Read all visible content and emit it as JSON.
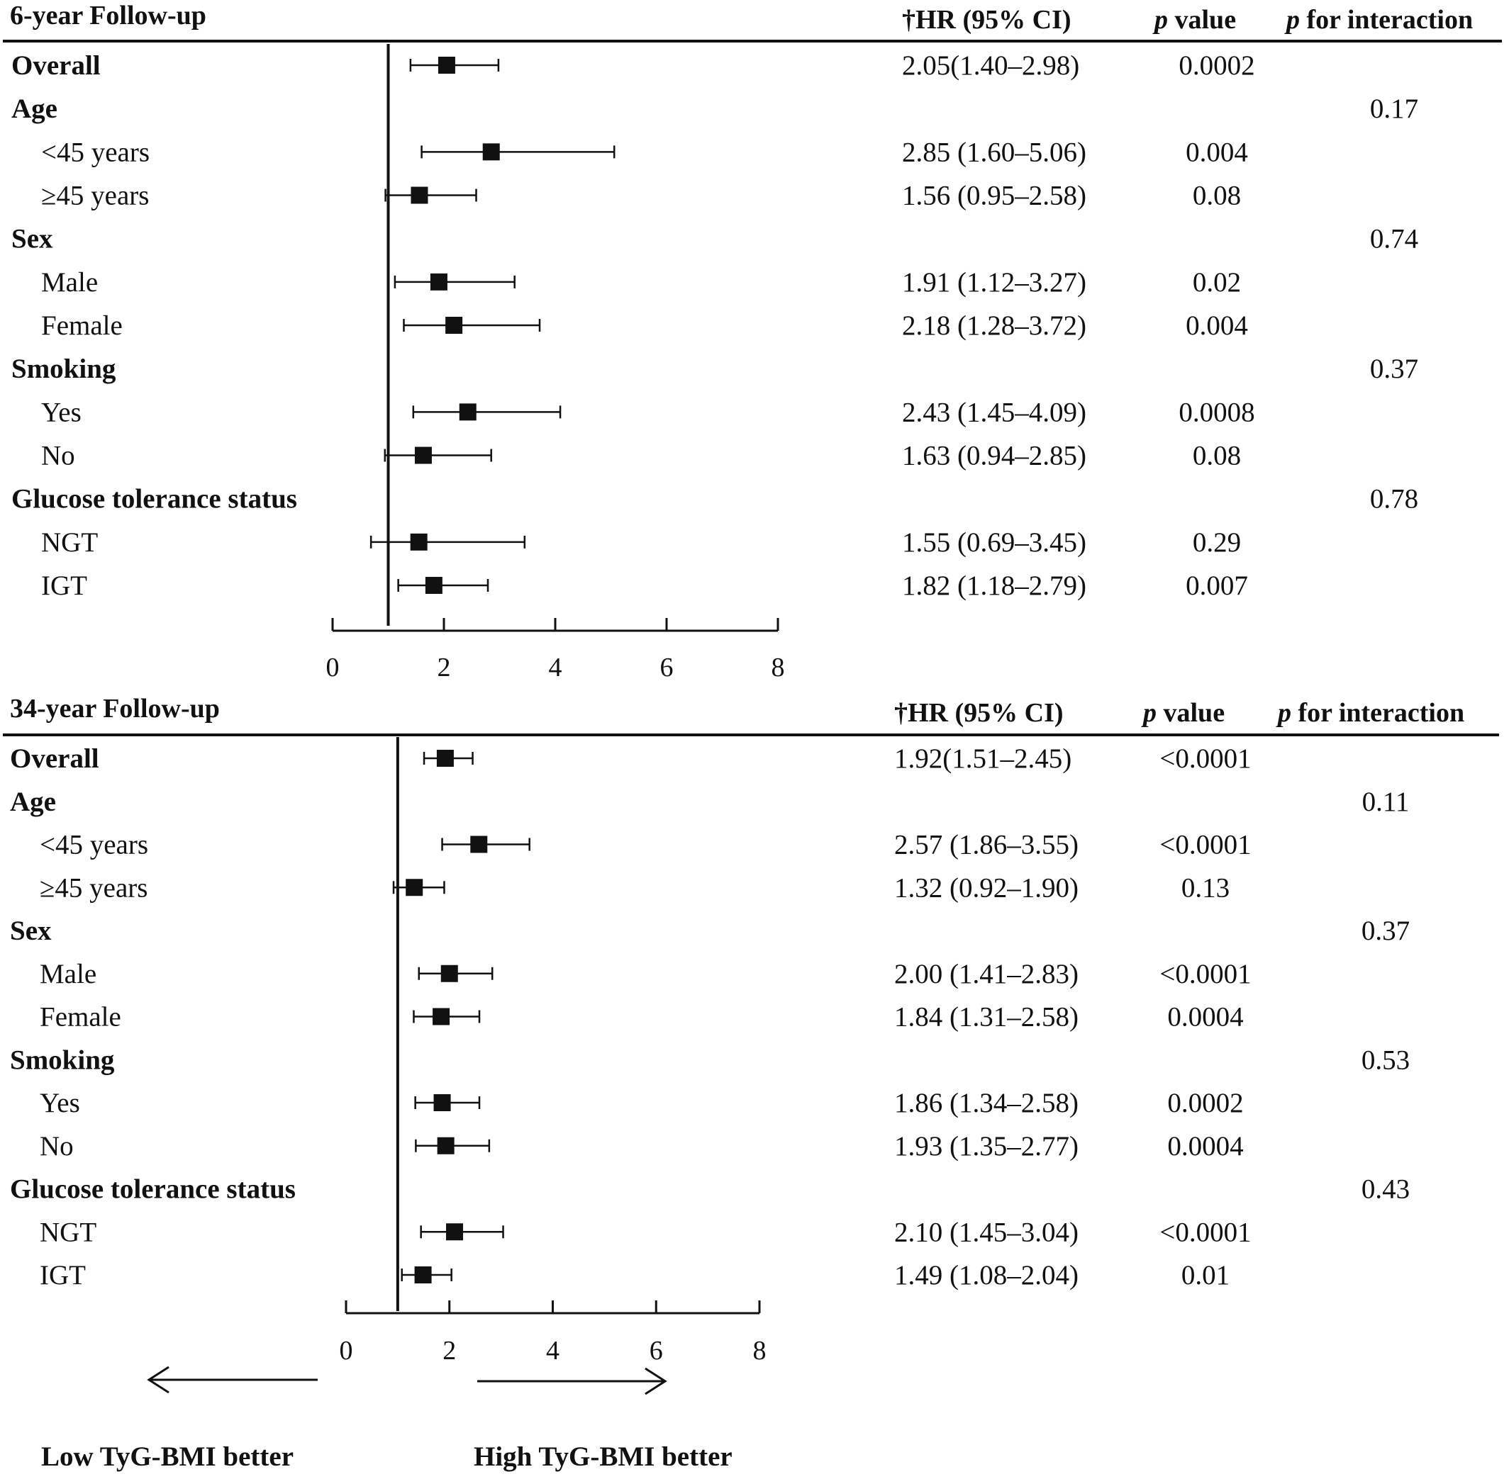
{
  "chart_data": [
    {
      "type": "forest",
      "title": "6-year Follow-up",
      "headers": {
        "hr": "†HR (95% CI)",
        "p_prefix": "p",
        "p_suffix": " value",
        "pint_prefix": "p",
        "pint_suffix": " for interaction"
      },
      "reference_value": 1,
      "xlim": [
        0,
        8
      ],
      "xticks": [
        "0",
        "2",
        "4",
        "6",
        "8"
      ],
      "rows": [
        {
          "label": "Overall",
          "heading": true,
          "hr": 2.05,
          "lo": 1.4,
          "hi": 2.98,
          "hr_text": "2.05(1.40–2.98)",
          "p": "0.0002",
          "p_int": ""
        },
        {
          "label": "Age",
          "heading": true,
          "p_int": "0.17"
        },
        {
          "label": "<45 years",
          "hr": 2.85,
          "lo": 1.6,
          "hi": 5.06,
          "hr_text": "2.85 (1.60–5.06)",
          "p": "0.004"
        },
        {
          "label": "≥45 years",
          "hr": 1.56,
          "lo": 0.95,
          "hi": 2.58,
          "hr_text": "1.56 (0.95–2.58)",
          "p": "0.08"
        },
        {
          "label": "Sex",
          "heading": true,
          "p_int": "0.74"
        },
        {
          "label": "Male",
          "hr": 1.91,
          "lo": 1.12,
          "hi": 3.27,
          "hr_text": "1.91 (1.12–3.27)",
          "p": "0.02"
        },
        {
          "label": "Female",
          "hr": 2.18,
          "lo": 1.28,
          "hi": 3.72,
          "hr_text": "2.18 (1.28–3.72)",
          "p": "0.004"
        },
        {
          "label": "Smoking",
          "heading": true,
          "p_int": "0.37"
        },
        {
          "label": "Yes",
          "hr": 2.43,
          "lo": 1.45,
          "hi": 4.09,
          "hr_text": "2.43 (1.45–4.09)",
          "p": "0.0008"
        },
        {
          "label": "No",
          "hr": 1.63,
          "lo": 0.94,
          "hi": 2.85,
          "hr_text": "1.63 (0.94–2.85)",
          "p": "0.08"
        },
        {
          "label": "Glucose tolerance status",
          "heading": true,
          "p_int": "0.78"
        },
        {
          "label": "NGT",
          "hr": 1.55,
          "lo": 0.69,
          "hi": 3.45,
          "hr_text": "1.55 (0.69–3.45)",
          "p": "0.29"
        },
        {
          "label": "IGT",
          "hr": 1.82,
          "lo": 1.18,
          "hi": 2.79,
          "hr_text": "1.82 (1.18–2.79)",
          "p": "0.007"
        }
      ]
    },
    {
      "type": "forest",
      "title": "34-year Follow-up",
      "headers": {
        "hr": "†HR (95% CI)",
        "p_prefix": "p",
        "p_suffix": " value",
        "pint_prefix": "p",
        "pint_suffix": " for interaction"
      },
      "reference_value": 1,
      "xlim": [
        0,
        8
      ],
      "xticks": [
        "0",
        "2",
        "4",
        "6",
        "8"
      ],
      "rows": [
        {
          "label": "Overall",
          "heading": true,
          "hr": 1.92,
          "lo": 1.51,
          "hi": 2.45,
          "hr_text": "1.92(1.51–2.45)",
          "p": "<0.0001",
          "p_int": ""
        },
        {
          "label": "Age",
          "heading": true,
          "p_int": "0.11"
        },
        {
          "label": "<45 years",
          "hr": 2.57,
          "lo": 1.86,
          "hi": 3.55,
          "hr_text": "2.57 (1.86–3.55)",
          "p": "<0.0001"
        },
        {
          "label": "≥45 years",
          "hr": 1.32,
          "lo": 0.92,
          "hi": 1.9,
          "hr_text": "1.32 (0.92–1.90)",
          "p": "0.13"
        },
        {
          "label": "Sex",
          "heading": true,
          "p_int": "0.37"
        },
        {
          "label": "Male",
          "hr": 2.0,
          "lo": 1.41,
          "hi": 2.83,
          "hr_text": "2.00 (1.41–2.83)",
          "p": "<0.0001"
        },
        {
          "label": "Female",
          "hr": 1.84,
          "lo": 1.31,
          "hi": 2.58,
          "hr_text": "1.84 (1.31–2.58)",
          "p": "0.0004"
        },
        {
          "label": "Smoking",
          "heading": true,
          "p_int": "0.53"
        },
        {
          "label": "Yes",
          "hr": 1.86,
          "lo": 1.34,
          "hi": 2.58,
          "hr_text": "1.86 (1.34–2.58)",
          "p": "0.0002"
        },
        {
          "label": "No",
          "hr": 1.93,
          "lo": 1.35,
          "hi": 2.77,
          "hr_text": "1.93 (1.35–2.77)",
          "p": "0.0004"
        },
        {
          "label": "Glucose tolerance status",
          "heading": true,
          "p_int": "0.43"
        },
        {
          "label": "NGT",
          "hr": 2.1,
          "lo": 1.45,
          "hi": 3.04,
          "hr_text": "2.10 (1.45–3.04)",
          "p": "<0.0001"
        },
        {
          "label": "IGT",
          "hr": 1.49,
          "lo": 1.08,
          "hi": 2.04,
          "hr_text": "1.49 (1.08–2.04)",
          "p": "0.01"
        }
      ]
    }
  ],
  "footer": {
    "left_label": "Low TyG-BMI better",
    "right_label": "High TyG-BMI better"
  },
  "colors": {
    "ink": "#111111",
    "marker": "#111111",
    "background": "#ffffff"
  }
}
